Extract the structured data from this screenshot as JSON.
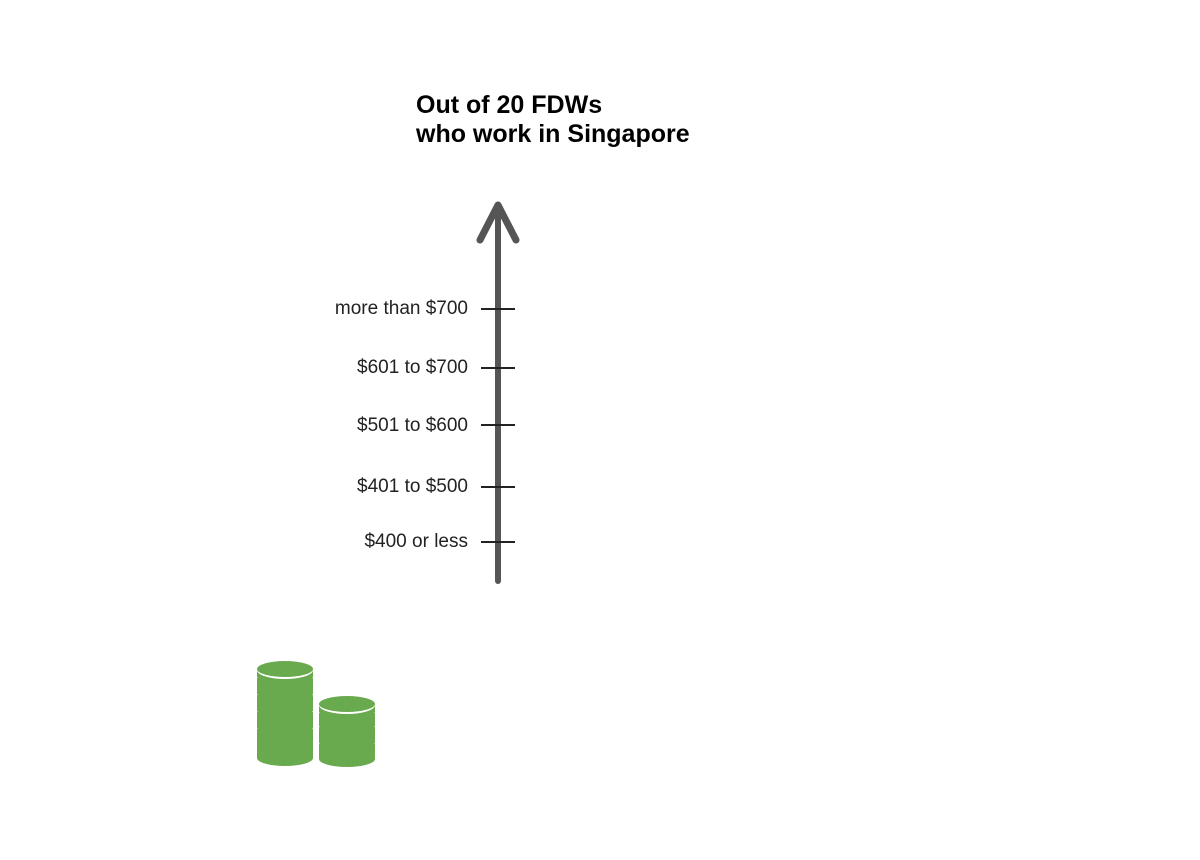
{
  "title": {
    "line1": "Out of 20 FDWs",
    "line2": "who work in Singapore"
  },
  "axis": {
    "levels": [
      "more than $700",
      "$601 to $700",
      "$501 to $600",
      "$401 to $500",
      "$400 or less"
    ]
  },
  "colors": {
    "axis": "#555555",
    "coins": "#6aaa4f",
    "text": "#222222"
  },
  "icons": {
    "coins": "coin-stacks-icon"
  }
}
